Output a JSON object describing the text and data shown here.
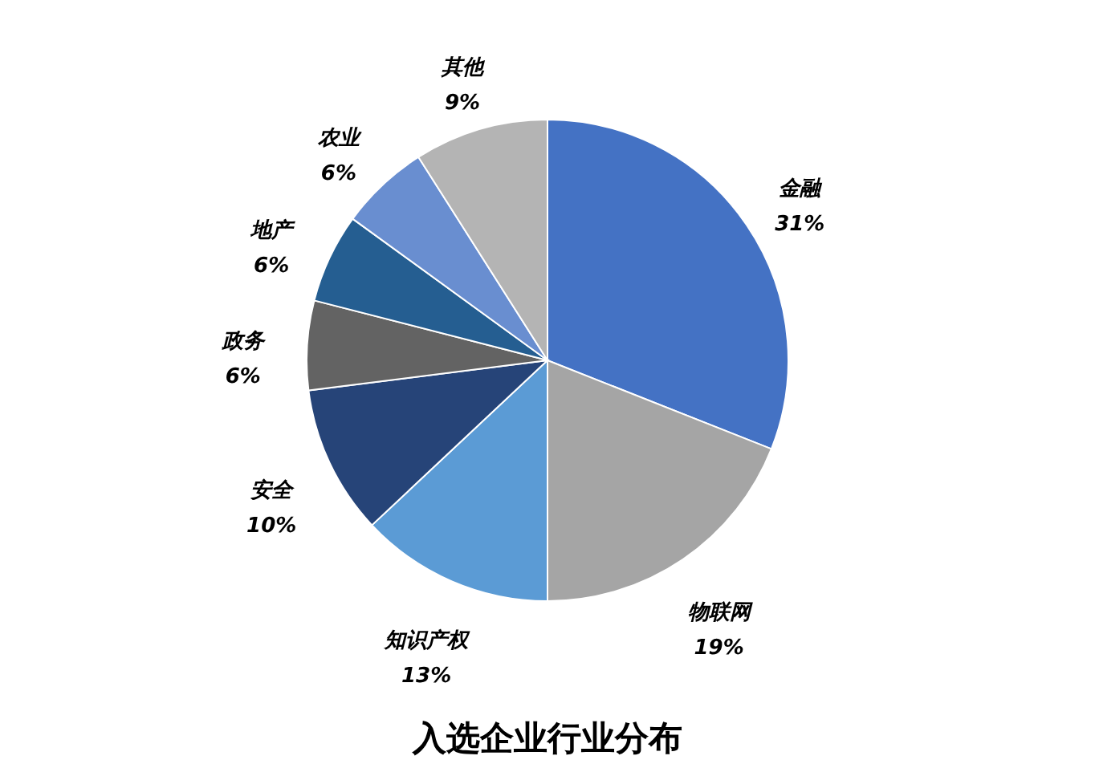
{
  "chart_data": {
    "type": "pie",
    "title": "入选企业行业分布",
    "categories": [
      "金融",
      "物联网",
      "知识产权",
      "安全",
      "政务",
      "地产",
      "农业",
      "其他"
    ],
    "values": [
      31,
      19,
      13,
      10,
      6,
      6,
      6,
      9
    ],
    "colors": [
      "#4472c4",
      "#a5a5a5",
      "#5b9bd5",
      "#264478",
      "#636363",
      "#255e91",
      "#698ed0",
      "#b4b4b4"
    ],
    "value_labels": [
      "31%",
      "19%",
      "13%",
      "10%",
      "6%",
      "6%",
      "6%",
      "9%"
    ],
    "legend": false
  }
}
